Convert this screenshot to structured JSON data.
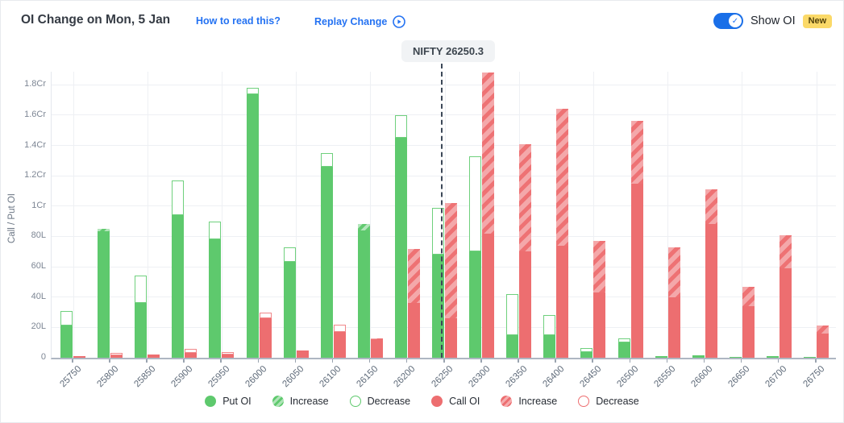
{
  "header": {
    "title": "OI Change on Mon, 5 Jan",
    "how_to_read_link": "How to read this?",
    "replay_link": "Replay Change",
    "show_oi_label": "Show OI",
    "new_badge": "New",
    "show_oi_on": true
  },
  "nifty_marker": {
    "label": "NIFTY 26250.3",
    "value": 26250.3
  },
  "colors": {
    "put": "#5ec96d",
    "call": "#ed6e70",
    "accent_blue": "#2472f2",
    "toggle_blue": "#1a6fe8",
    "badge_yellow": "#fbd968",
    "nifty_line": "#3c4858"
  },
  "chart_data": {
    "type": "bar",
    "ylabel": "Call / Put OI",
    "unit": "lakh (L); 1Cr = 100L",
    "ylim": [
      0,
      190
    ],
    "grid": true,
    "yticks": [
      {
        "value": 180,
        "label": "1.8Cr"
      },
      {
        "value": 160,
        "label": "1.6Cr"
      },
      {
        "value": 140,
        "label": "1.4Cr"
      },
      {
        "value": 120,
        "label": "1.2Cr"
      },
      {
        "value": 100,
        "label": "1Cr"
      },
      {
        "value": 80,
        "label": "80L"
      },
      {
        "value": 60,
        "label": "60L"
      },
      {
        "value": 40,
        "label": "40L"
      },
      {
        "value": 20,
        "label": "20L"
      },
      {
        "value": 0,
        "label": "0"
      }
    ],
    "categories": [
      "25750",
      "25800",
      "25850",
      "25900",
      "25950",
      "26000",
      "26050",
      "26100",
      "26150",
      "26200",
      "26250",
      "26300",
      "26350",
      "26400",
      "26450",
      "26500",
      "26550",
      "26600",
      "26650",
      "26700",
      "26750"
    ],
    "series": [
      {
        "name": "Put OI",
        "role": "put",
        "color": "#5ec96d",
        "oi": [
          21,
          85,
          36,
          94,
          78,
          174,
          63,
          126,
          88,
          145,
          68,
          70,
          15,
          15,
          3.5,
          10,
          1.2,
          1.5,
          0.5,
          1,
          0.4
        ],
        "increase": [
          0,
          1.5,
          0,
          0,
          0,
          0,
          0,
          0,
          4,
          0,
          0,
          0,
          0,
          0,
          0,
          0,
          0,
          0,
          0,
          0,
          0
        ],
        "decrease": [
          10,
          0,
          18,
          23,
          12,
          4,
          10,
          9,
          0,
          15,
          31,
          63,
          27,
          13,
          3,
          3,
          0,
          0,
          0,
          0,
          0
        ]
      },
      {
        "name": "Call OI",
        "role": "call",
        "color": "#ed6e70",
        "oi": [
          1,
          1.5,
          2,
          3,
          2,
          26,
          5,
          17,
          13,
          72,
          102,
          188,
          141,
          164,
          77,
          156,
          73,
          111,
          47,
          81,
          21
        ],
        "increase": [
          0,
          0,
          0,
          0,
          0,
          0,
          0,
          0,
          1,
          36,
          76,
          106,
          71,
          90,
          34,
          41,
          33,
          23,
          13,
          22,
          5
        ],
        "decrease": [
          0,
          1.5,
          0,
          3,
          2,
          4,
          0,
          5,
          0,
          0,
          0,
          0,
          0,
          0,
          0,
          0,
          0,
          0,
          0,
          0,
          0
        ]
      }
    ],
    "nifty_line_at": 26250.3
  },
  "legend": [
    {
      "label": "Put OI",
      "swatch": "green-solid"
    },
    {
      "label": "Increase",
      "swatch": "green-hatch"
    },
    {
      "label": "Decrease",
      "swatch": "green-outline"
    },
    {
      "label": "Call OI",
      "swatch": "red-solid"
    },
    {
      "label": "Increase",
      "swatch": "red-hatch"
    },
    {
      "label": "Decrease",
      "swatch": "red-outline"
    }
  ]
}
